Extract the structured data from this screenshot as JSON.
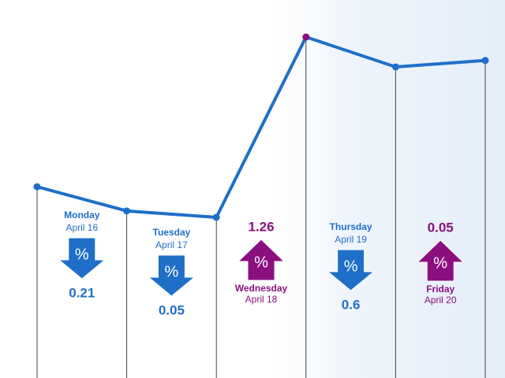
{
  "chart_data": {
    "type": "line",
    "color": "#1f6fc8",
    "highlight_color": "#8b0f7f",
    "highlight_index": 3,
    "values": [
      50.6,
      44.2,
      42.5,
      90.2,
      82.3,
      84.0
    ],
    "ylim": [
      0,
      100
    ],
    "icon_label": "%",
    "changes": [
      {
        "day": "Monday",
        "date": "April 16",
        "value": 0.21,
        "direction": "down",
        "color": "#1f6fc8"
      },
      {
        "day": "Tuesday",
        "date": "April 17",
        "value": 0.05,
        "direction": "down",
        "color": "#1f6fc8"
      },
      {
        "day": "Wednesday",
        "date": "April 18",
        "value": 1.26,
        "direction": "up",
        "color": "#8b0f7f"
      },
      {
        "day": "Thursday",
        "date": "April 19",
        "value": 0.6,
        "direction": "down",
        "color": "#1f6fc8"
      },
      {
        "day": "Friday",
        "date": "April 20",
        "value": 0.05,
        "direction": "up",
        "color": "#8b0f7f"
      }
    ]
  }
}
